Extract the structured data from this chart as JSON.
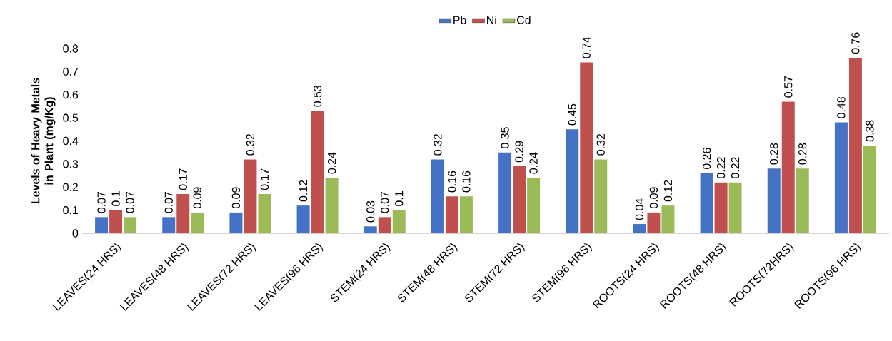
{
  "chart_data": {
    "type": "bar",
    "ylabel": "Levels of Heavy Metals in Plant (mg/Kg)",
    "categories": [
      "LEAVES(24 HRS)",
      "LEAVES(48 HRS)",
      "LEAVES(72 HRS)",
      "LEAVES(96 HRS)",
      "STEM(24 HRS)",
      "STEM(48 HRS)",
      "STEM(72 HRS)",
      "STEM(96 HRS)",
      "ROOTS(24 HRS)",
      "ROOTS(48 HRS)",
      "ROOTS(72HRS)",
      "ROOTS(96 HRS)"
    ],
    "series": [
      {
        "name": "Pb",
        "color": "#4472c4",
        "values": [
          0.07,
          0.07,
          0.09,
          0.12,
          0.03,
          0.32,
          0.35,
          0.45,
          0.04,
          0.26,
          0.28,
          0.48
        ]
      },
      {
        "name": "Ni",
        "color": "#c0504d",
        "values": [
          0.1,
          0.17,
          0.32,
          0.53,
          0.07,
          0.16,
          0.29,
          0.74,
          0.09,
          0.22,
          0.57,
          0.76
        ]
      },
      {
        "name": "Cd",
        "color": "#9bbb59",
        "values": [
          0.07,
          0.09,
          0.17,
          0.24,
          0.1,
          0.16,
          0.24,
          0.32,
          0.12,
          0.22,
          0.28,
          0.38
        ]
      }
    ],
    "ylim": [
      0,
      0.8
    ],
    "yticks": [
      0,
      0.1,
      0.2,
      0.3,
      0.4,
      0.5,
      0.6,
      0.7,
      0.8
    ],
    "data_labels": true,
    "legend": "top"
  }
}
